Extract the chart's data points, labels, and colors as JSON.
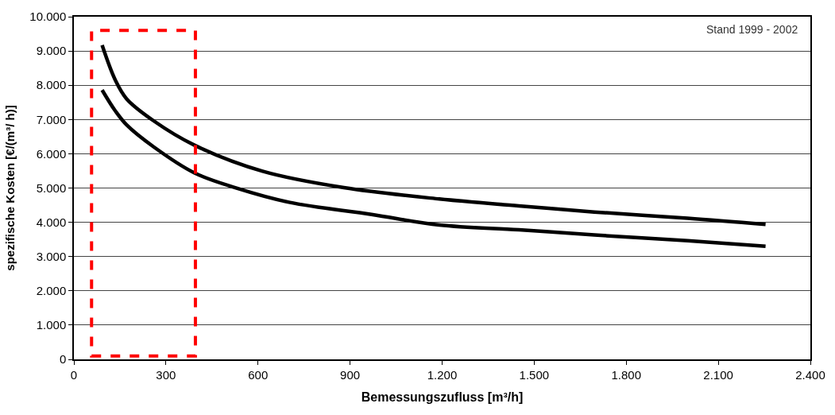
{
  "chart_data": {
    "type": "line",
    "xlabel": "Bemessungszufluss [m³/h]",
    "ylabel": "spezifische Kosten [€/(m³/ h)]",
    "annotations": [
      "Stand 1999 - 2002"
    ],
    "series": [
      {
        "color": "#000000",
        "x": [
          92,
          135,
          172,
          260,
          393,
          615,
          880,
          1191,
          1450,
          1696,
          2000,
          2254
        ],
        "values": [
          9170,
          8150,
          7600,
          6960,
          6250,
          5490,
          5010,
          4680,
          4480,
          4300,
          4120,
          3940
        ]
      },
      {
        "color": "#000000",
        "x": [
          92,
          135,
          172,
          260,
          393,
          526,
          704,
          970,
          1191,
          1450,
          1696,
          2000,
          2254
        ],
        "values": [
          7860,
          7250,
          6840,
          6200,
          5440,
          5010,
          4580,
          4230,
          3920,
          3780,
          3630,
          3460,
          3300
        ]
      }
    ],
    "xlim": [
      0,
      2400
    ],
    "ylim": [
      0,
      10000
    ],
    "xticks": [
      0,
      300,
      600,
      900,
      {
        "value": 1200,
        "label": "1.200"
      },
      {
        "value": 1500,
        "label": "1.500"
      },
      {
        "value": 1800,
        "label": "1.800"
      },
      {
        "value": 2100,
        "label": "2.100"
      },
      {
        "value": 2400,
        "label": "2.400"
      }
    ],
    "yticks": [
      0,
      {
        "value": 1000,
        "label": "1.000"
      },
      {
        "value": 2000,
        "label": "2.000"
      },
      {
        "value": 3000,
        "label": "3.000"
      },
      {
        "value": 4000,
        "label": "4.000"
      },
      {
        "value": 5000,
        "label": "5.000"
      },
      {
        "value": 6000,
        "label": "6.000"
      },
      {
        "value": 7000,
        "label": "7.000"
      },
      {
        "value": 8000,
        "label": "8.000"
      },
      {
        "value": 9000,
        "label": "9.000"
      },
      {
        "value": 10000,
        "label": "10.000"
      }
    ],
    "grid": "y",
    "line_style": "solid",
    "marker": "none"
  }
}
